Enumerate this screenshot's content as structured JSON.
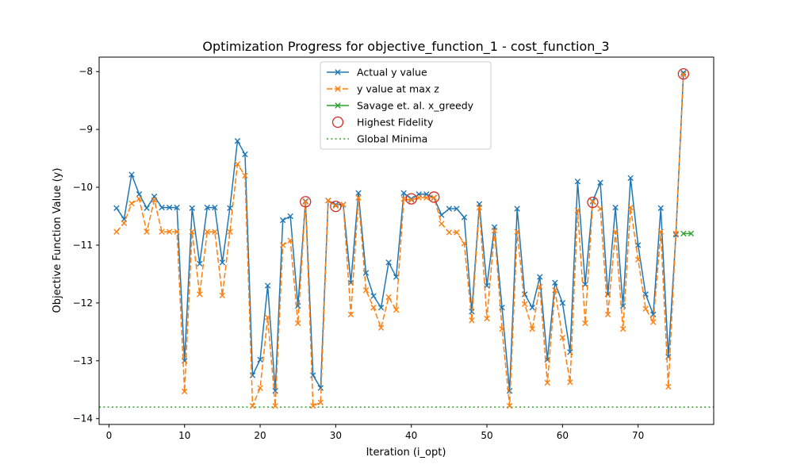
{
  "chart_data": {
    "type": "line",
    "title": "Optimization Progress for objective_function_1 - cost_function_3",
    "xlabel": "Iteration (i_opt)",
    "ylabel": "Objective Function Value (y)",
    "xlim": [
      -1.3,
      80
    ],
    "ylim": [
      -14.1,
      -7.75
    ],
    "x_ticks": [
      0,
      10,
      20,
      30,
      40,
      50,
      60,
      70
    ],
    "y_ticks": [
      -14,
      -13,
      -12,
      -11,
      -10,
      -9,
      -8
    ],
    "grid": false,
    "legend_position": "upper center",
    "series": [
      {
        "name": "Actual y value",
        "color": "#1f77b4",
        "line_style": "solid",
        "marker": "x",
        "x": [
          1,
          2,
          3,
          4,
          5,
          6,
          7,
          8,
          9,
          10,
          11,
          12,
          13,
          14,
          15,
          16,
          17,
          18,
          19,
          20,
          21,
          22,
          23,
          24,
          25,
          26,
          27,
          28,
          29,
          30,
          31,
          32,
          33,
          34,
          35,
          36,
          37,
          38,
          39,
          40,
          41,
          42,
          43,
          44,
          45,
          46,
          47,
          48,
          49,
          50,
          51,
          52,
          53,
          54,
          55,
          56,
          57,
          58,
          59,
          60,
          61,
          62,
          63,
          64,
          65,
          66,
          67,
          68,
          69,
          70,
          71,
          72,
          73,
          74,
          75,
          76
        ],
        "y": [
          -10.36,
          -10.55,
          -9.78,
          -10.12,
          -10.36,
          -10.16,
          -10.35,
          -10.35,
          -10.35,
          -13.0,
          -10.36,
          -11.32,
          -10.35,
          -10.35,
          -11.3,
          -10.36,
          -9.2,
          -9.43,
          -13.25,
          -12.98,
          -11.7,
          -13.52,
          -10.57,
          -10.5,
          -12.05,
          -10.24,
          -13.25,
          -13.47,
          -10.23,
          -10.3,
          -10.3,
          -11.65,
          -10.1,
          -11.48,
          -11.88,
          -12.08,
          -11.3,
          -11.55,
          -10.1,
          -10.2,
          -10.12,
          -10.12,
          -10.18,
          -10.48,
          -10.37,
          -10.37,
          -10.52,
          -12.15,
          -10.29,
          -11.7,
          -10.69,
          -12.08,
          -13.52,
          -10.37,
          -11.85,
          -12.08,
          -11.55,
          -12.98,
          -11.65,
          -12.0,
          -12.85,
          -9.9,
          -11.68,
          -10.24,
          -9.92,
          -11.85,
          -10.35,
          -12.05,
          -9.84,
          -11.0,
          -11.85,
          -12.2,
          -10.36,
          -12.93,
          -10.82,
          -8.02
        ]
      },
      {
        "name": "y value at max z",
        "color": "#ff7f0e",
        "line_style": "dashed",
        "marker": "x",
        "x": [
          1,
          2,
          3,
          4,
          5,
          6,
          7,
          8,
          9,
          10,
          11,
          12,
          13,
          14,
          15,
          16,
          17,
          18,
          19,
          20,
          21,
          22,
          23,
          24,
          25,
          26,
          27,
          28,
          29,
          30,
          31,
          32,
          33,
          34,
          35,
          36,
          37,
          38,
          39,
          40,
          41,
          42,
          43,
          44,
          45,
          46,
          47,
          48,
          49,
          50,
          51,
          52,
          53,
          54,
          55,
          56,
          57,
          58,
          59,
          60,
          61,
          62,
          63,
          64,
          65,
          66,
          67,
          68,
          69,
          70,
          71,
          72,
          73,
          74,
          75,
          76
        ],
        "y": [
          -10.77,
          -10.62,
          -10.28,
          -10.2,
          -10.77,
          -10.22,
          -10.77,
          -10.77,
          -10.77,
          -13.53,
          -10.77,
          -11.85,
          -10.77,
          -10.77,
          -11.87,
          -10.77,
          -9.6,
          -9.8,
          -13.78,
          -13.47,
          -12.25,
          -13.78,
          -11.0,
          -10.92,
          -12.35,
          -10.25,
          -13.78,
          -13.72,
          -10.23,
          -10.32,
          -10.3,
          -12.2,
          -10.18,
          -11.78,
          -12.08,
          -12.43,
          -11.9,
          -12.12,
          -10.2,
          -10.22,
          -10.18,
          -10.18,
          -10.18,
          -10.63,
          -10.78,
          -10.78,
          -10.97,
          -12.3,
          -10.35,
          -12.27,
          -10.75,
          -12.45,
          -13.78,
          -10.77,
          -12.02,
          -12.45,
          -11.72,
          -13.38,
          -11.78,
          -12.6,
          -13.37,
          -10.4,
          -12.35,
          -10.25,
          -10.37,
          -12.2,
          -10.77,
          -12.45,
          -10.35,
          -11.25,
          -12.1,
          -12.33,
          -10.77,
          -13.45,
          -10.8,
          -8.05
        ]
      },
      {
        "name": "Savage et. al. x_greedy",
        "color": "#2ca02c",
        "line_style": "solid",
        "marker": "x",
        "x": [
          76,
          77
        ],
        "y": [
          -10.8,
          -10.8
        ]
      },
      {
        "name": "Highest Fidelity",
        "color": "#d62728",
        "marker": "o",
        "x": [
          26,
          30,
          40,
          43,
          64,
          76
        ],
        "y": [
          -10.25,
          -10.33,
          -10.2,
          -10.17,
          -10.26,
          -8.04
        ]
      },
      {
        "name": "Global Minima",
        "color": "#2ca02c",
        "line_style": "dotted",
        "y": -13.8
      }
    ]
  }
}
